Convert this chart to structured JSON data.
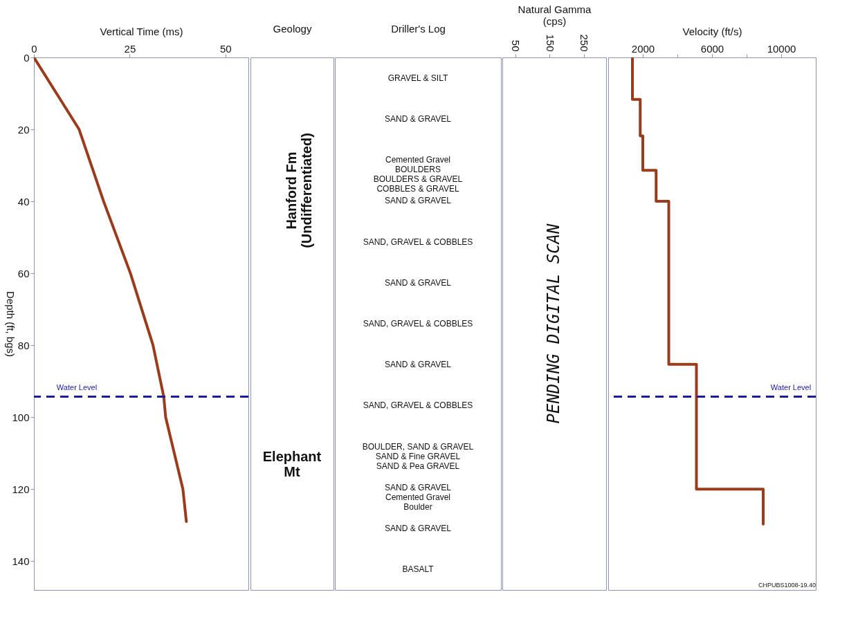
{
  "chart_data": [
    {
      "type": "line",
      "xlabel": "Vertical Time (ms)",
      "ylabel": "Depth (ft, bgs)",
      "xlim": [
        0,
        56
      ],
      "xticks": [
        0,
        25,
        50
      ],
      "ylim": [
        148,
        0
      ],
      "yticks": [
        0,
        20,
        40,
        60,
        80,
        100,
        120,
        140
      ],
      "series": [
        {
          "color": "#9a3b1c",
          "x": [
            0,
            5.9,
            11.8,
            18.2,
            25.2,
            31.1,
            33.9,
            34.4,
            38.9,
            39.8
          ],
          "values": [
            0,
            10,
            20,
            40,
            60,
            80,
            94.3,
            100,
            120,
            129
          ]
        }
      ],
      "ref_lines": [
        {
          "axis": "y",
          "value": 94.3,
          "label": "Water Level",
          "color": "#1a1a9e",
          "line_style": "dashed"
        }
      ]
    },
    {
      "type": "other",
      "xlabel": "Geology",
      "annotations": [
        "Hanford Fm\n(Undifferentiated)",
        "Elephant\nMt"
      ]
    },
    {
      "type": "other",
      "xlabel": "Driller's Log",
      "annotations": [
        "GRAVEL & SILT",
        "SAND & GRAVEL",
        "Cemented Gravel\nBOULDERS\nBOULDERS & GRAVEL\nCOBBLES & GRAVEL",
        "SAND & GRAVEL",
        "SAND, GRAVEL & COBBLES",
        "SAND & GRAVEL",
        "SAND, GRAVEL & COBBLES",
        "SAND & GRAVEL",
        "SAND, GRAVEL & COBBLES",
        "BOULDER, SAND & GRAVEL\nSAND & Fine GRAVEL\nSAND & Pea GRAVEL",
        "SAND & GRAVEL\nCemented Gravel\nBoulder",
        "SAND & GRAVEL",
        "BASALT"
      ]
    },
    {
      "type": "line",
      "xlabel": "Natural Gamma\n(cps)",
      "xlim": [
        12,
        315
      ],
      "xticks": [
        50,
        150,
        250
      ],
      "ylim": [
        148,
        0
      ],
      "tick_labels": "x",
      "annotations": [
        "PENDING DIGITAL SCAN"
      ]
    },
    {
      "type": "line",
      "xlabel": "Velocity (ft/s)",
      "xlim": [
        0,
        12000
      ],
      "xticks": [
        2000,
        {
          "value": 4000,
          "label": null
        },
        6000,
        {
          "value": 8000,
          "label": null
        },
        10000
      ],
      "ylim": [
        148,
        0
      ],
      "tick_labels": "x",
      "series": [
        {
          "color": "#9a3b1c",
          "x": [
            1400,
            1400,
            1850,
            1850,
            2000,
            2000,
            2770,
            2770,
            3500,
            3500,
            5100,
            5100,
            8960,
            8960
          ],
          "values": [
            0,
            11.7,
            11.7,
            21.8,
            21.8,
            31.4,
            31.4,
            40,
            40,
            85.3,
            85.3,
            120,
            120,
            129.7
          ]
        }
      ],
      "ref_lines": [
        {
          "axis": "y",
          "value": 94.3,
          "label": "Water Level",
          "color": "#1a1a9e",
          "line_style": "dashed"
        }
      ],
      "annotations": [
        "CHPUBS1008-19.40"
      ]
    }
  ]
}
